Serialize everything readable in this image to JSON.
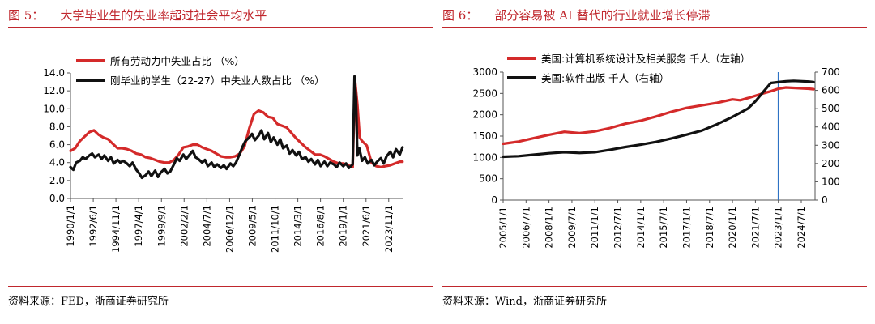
{
  "figures": [
    {
      "number": "图 5：",
      "title": "大学毕业生的失业率超过社会平均水平",
      "source": "资料来源：FED，浙商证券研究所"
    },
    {
      "number": "图 6：",
      "title": "部分容易被 AI 替代的行业就业增长停滞",
      "source": "资料来源：Wind，浙商证券研究所"
    }
  ],
  "chart_data": [
    {
      "type": "line",
      "title": "",
      "xlabel": "",
      "ylabel": "",
      "ylim": [
        0,
        14
      ],
      "y_ticks": [
        "0.0",
        "2.0",
        "4.0",
        "6.0",
        "8.0",
        "10.0",
        "12.0",
        "14.0"
      ],
      "x_range": [
        1990.0,
        2025.4
      ],
      "x_tick_labels": [
        "1990/1/1",
        "1992/6/1",
        "1994/11/1",
        "1997/4/1",
        "1999/9/1",
        "2002/2/1",
        "2004/7/1",
        "2006/12/1",
        "2009/5/1",
        "2011/10/1",
        "2014/3/1",
        "2016/8/1",
        "2019/1/1",
        "2021/6/1",
        "2023/11/1"
      ],
      "x_tick_positions": [
        1990.0,
        1992.42,
        1994.83,
        1997.25,
        1999.67,
        2002.08,
        2004.5,
        2006.92,
        2009.33,
        2011.75,
        2014.17,
        2016.58,
        2019.0,
        2021.42,
        2023.83
      ],
      "grid": false,
      "legend_position": "top-left",
      "series": [
        {
          "name": "所有劳动力中失业占比 （%）",
          "color": "#d42a2a",
          "x": [
            1990.0,
            1990.5,
            1991.0,
            1991.5,
            1992.0,
            1992.5,
            1993.0,
            1993.5,
            1994.0,
            1994.5,
            1995.0,
            1995.5,
            1996.0,
            1996.5,
            1997.0,
            1997.5,
            1998.0,
            1998.5,
            1999.0,
            1999.5,
            2000.0,
            2000.5,
            2001.0,
            2001.5,
            2002.0,
            2002.5,
            2003.0,
            2003.5,
            2004.0,
            2004.5,
            2005.0,
            2005.5,
            2006.0,
            2006.5,
            2007.0,
            2007.5,
            2008.0,
            2008.5,
            2009.0,
            2009.5,
            2010.0,
            2010.5,
            2011.0,
            2011.5,
            2012.0,
            2012.5,
            2013.0,
            2013.5,
            2014.0,
            2014.5,
            2015.0,
            2015.5,
            2016.0,
            2016.5,
            2017.0,
            2017.5,
            2018.0,
            2018.5,
            2019.0,
            2019.5,
            2020.0,
            2020.25,
            2020.5,
            2020.75,
            2021.0,
            2021.5,
            2022.0,
            2022.5,
            2023.0,
            2023.5,
            2024.0,
            2024.5,
            2025.0,
            2025.3
          ],
          "values": [
            5.3,
            5.6,
            6.4,
            6.9,
            7.4,
            7.6,
            7.1,
            6.8,
            6.6,
            6.1,
            5.6,
            5.6,
            5.5,
            5.3,
            5.0,
            4.9,
            4.6,
            4.5,
            4.3,
            4.1,
            4.0,
            4.0,
            4.3,
            4.9,
            5.7,
            5.8,
            6.0,
            6.0,
            5.7,
            5.5,
            5.3,
            5.0,
            4.7,
            4.6,
            4.6,
            4.7,
            5.0,
            5.8,
            7.8,
            9.4,
            9.8,
            9.6,
            9.1,
            9.0,
            8.3,
            8.1,
            7.9,
            7.3,
            6.7,
            6.2,
            5.7,
            5.3,
            4.9,
            4.9,
            4.7,
            4.4,
            4.1,
            3.9,
            3.9,
            3.7,
            3.5,
            13.2,
            10.5,
            6.8,
            6.4,
            5.9,
            4.0,
            3.6,
            3.5,
            3.6,
            3.7,
            3.9,
            4.1,
            4.1
          ]
        },
        {
          "name": "刚毕业的学生（22-27）中失业人数占比 （%）",
          "color": "#111111",
          "x": [
            1990.0,
            1990.3,
            1990.6,
            1991.0,
            1991.3,
            1991.6,
            1992.0,
            1992.3,
            1992.6,
            1993.0,
            1993.3,
            1993.6,
            1994.0,
            1994.3,
            1994.6,
            1995.0,
            1995.3,
            1995.6,
            1996.0,
            1996.3,
            1996.6,
            1997.0,
            1997.3,
            1997.6,
            1998.0,
            1998.3,
            1998.6,
            1999.0,
            1999.3,
            1999.6,
            2000.0,
            2000.3,
            2000.6,
            2001.0,
            2001.3,
            2001.6,
            2002.0,
            2002.3,
            2002.6,
            2003.0,
            2003.3,
            2003.6,
            2004.0,
            2004.3,
            2004.6,
            2005.0,
            2005.3,
            2005.6,
            2006.0,
            2006.3,
            2006.6,
            2007.0,
            2007.3,
            2007.6,
            2008.0,
            2008.3,
            2008.6,
            2009.0,
            2009.3,
            2009.6,
            2010.0,
            2010.3,
            2010.6,
            2011.0,
            2011.3,
            2011.6,
            2012.0,
            2012.3,
            2012.6,
            2013.0,
            2013.3,
            2013.6,
            2014.0,
            2014.3,
            2014.6,
            2015.0,
            2015.3,
            2015.6,
            2016.0,
            2016.3,
            2016.6,
            2017.0,
            2017.3,
            2017.6,
            2018.0,
            2018.3,
            2018.6,
            2019.0,
            2019.3,
            2019.6,
            2020.0,
            2020.2,
            2020.35,
            2020.5,
            2020.7,
            2021.0,
            2021.3,
            2021.6,
            2022.0,
            2022.3,
            2022.6,
            2023.0,
            2023.3,
            2023.6,
            2024.0,
            2024.3,
            2024.6,
            2025.0,
            2025.3
          ],
          "values": [
            3.5,
            3.2,
            4.0,
            4.2,
            4.6,
            4.4,
            4.8,
            5.0,
            4.6,
            4.9,
            4.4,
            4.8,
            4.2,
            4.6,
            3.9,
            4.3,
            4.0,
            4.2,
            3.9,
            3.6,
            4.0,
            3.2,
            2.8,
            2.3,
            2.6,
            3.0,
            2.5,
            3.1,
            2.4,
            2.9,
            3.3,
            2.8,
            3.0,
            3.8,
            4.5,
            4.2,
            4.9,
            4.4,
            4.8,
            5.3,
            4.6,
            4.4,
            4.0,
            4.3,
            3.6,
            4.0,
            3.5,
            3.8,
            3.4,
            3.7,
            3.3,
            3.9,
            3.6,
            4.0,
            5.0,
            5.8,
            6.4,
            6.8,
            7.2,
            6.5,
            7.0,
            7.6,
            6.6,
            7.3,
            6.3,
            6.8,
            6.0,
            6.6,
            5.6,
            5.9,
            5.0,
            5.4,
            4.8,
            5.2,
            4.4,
            4.6,
            4.1,
            4.4,
            3.8,
            4.3,
            3.6,
            4.1,
            3.6,
            4.0,
            3.8,
            3.5,
            4.0,
            3.6,
            3.9,
            3.4,
            3.8,
            13.6,
            11.0,
            4.8,
            5.6,
            4.2,
            4.6,
            3.9,
            4.3,
            3.7,
            4.1,
            4.5,
            3.9,
            4.7,
            5.2,
            4.6,
            5.5,
            4.9,
            5.7
          ]
        }
      ]
    },
    {
      "type": "line",
      "title": "",
      "xlabel": "",
      "ylabel": "",
      "ylim": [
        0,
        3000
      ],
      "y_ticks": [
        "0",
        "500",
        "1000",
        "1500",
        "2000",
        "2500",
        "3000"
      ],
      "ylim_right": [
        0,
        700
      ],
      "y_ticks_right": [
        "0",
        "100",
        "200",
        "300",
        "400",
        "500",
        "600",
        "700"
      ],
      "x_range": [
        2005.0,
        2025.4
      ],
      "x_tick_labels": [
        "2005/1/1",
        "2006/7/1",
        "2008/1/1",
        "2009/7/1",
        "2011/1/1",
        "2012/7/1",
        "2014/1/1",
        "2015/7/1",
        "2017/1/1",
        "2018/7/1",
        "2020/1/1",
        "2021/7/1",
        "2023/1/1",
        "2024/7/1"
      ],
      "x_tick_positions": [
        2005.0,
        2006.5,
        2008.0,
        2009.5,
        2011.0,
        2012.5,
        2014.0,
        2015.5,
        2017.0,
        2018.5,
        2020.0,
        2021.5,
        2023.0,
        2024.5
      ],
      "grid": false,
      "legend_position": "top-left",
      "vline_x": 2023.0,
      "series": [
        {
          "name": "美国:计算机系统设计及相关服务 千人（左轴）",
          "axis": "left",
          "color": "#d42a2a",
          "x": [
            2005.0,
            2006.0,
            2007.0,
            2008.0,
            2009.0,
            2010.0,
            2011.0,
            2012.0,
            2013.0,
            2014.0,
            2015.0,
            2016.0,
            2017.0,
            2018.0,
            2019.0,
            2020.0,
            2020.5,
            2021.0,
            2022.0,
            2022.5,
            2023.0,
            2023.5,
            2024.0,
            2025.0,
            2025.3
          ],
          "values": [
            1320,
            1370,
            1450,
            1530,
            1600,
            1570,
            1610,
            1690,
            1790,
            1860,
            1960,
            2070,
            2160,
            2220,
            2280,
            2360,
            2340,
            2390,
            2500,
            2550,
            2610,
            2640,
            2630,
            2610,
            2600
          ]
        },
        {
          "name": "美国:软件出版 千人（右轴）",
          "axis": "right",
          "color": "#111111",
          "x": [
            2005.0,
            2006.0,
            2007.0,
            2008.0,
            2009.0,
            2010.0,
            2011.0,
            2012.0,
            2013.0,
            2014.0,
            2015.0,
            2016.0,
            2017.0,
            2018.0,
            2019.0,
            2020.0,
            2021.0,
            2021.5,
            2022.0,
            2022.5,
            2023.0,
            2023.5,
            2024.0,
            2025.0,
            2025.3
          ],
          "values": [
            237,
            240,
            248,
            256,
            262,
            258,
            262,
            275,
            290,
            303,
            318,
            337,
            358,
            380,
            415,
            455,
            500,
            540,
            590,
            640,
            645,
            650,
            652,
            648,
            645
          ]
        }
      ]
    }
  ]
}
